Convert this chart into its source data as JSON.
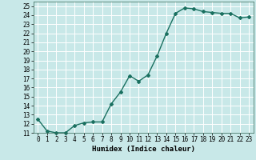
{
  "x": [
    0,
    1,
    2,
    3,
    4,
    5,
    6,
    7,
    8,
    9,
    10,
    11,
    12,
    13,
    14,
    15,
    16,
    17,
    18,
    19,
    20,
    21,
    22,
    23
  ],
  "y": [
    12.5,
    11.2,
    11.0,
    11.0,
    11.8,
    12.1,
    12.2,
    12.2,
    14.2,
    15.5,
    17.3,
    16.7,
    17.4,
    19.5,
    22.0,
    24.2,
    24.8,
    24.7,
    24.4,
    24.3,
    24.2,
    24.2,
    23.7,
    23.8
  ],
  "line_color": "#1a7060",
  "marker": "D",
  "marker_size": 2.0,
  "background_color": "#c8e8e8",
  "grid_color": "#ffffff",
  "xlabel": "Humidex (Indice chaleur)",
  "ylim": [
    11,
    25.5
  ],
  "xlim": [
    -0.5,
    23.5
  ],
  "yticks": [
    11,
    12,
    13,
    14,
    15,
    16,
    17,
    18,
    19,
    20,
    21,
    22,
    23,
    24,
    25
  ],
  "xticks": [
    0,
    1,
    2,
    3,
    4,
    5,
    6,
    7,
    8,
    9,
    10,
    11,
    12,
    13,
    14,
    15,
    16,
    17,
    18,
    19,
    20,
    21,
    22,
    23
  ],
  "xlabel_fontsize": 6.5,
  "tick_fontsize": 5.5,
  "linewidth": 1.0
}
